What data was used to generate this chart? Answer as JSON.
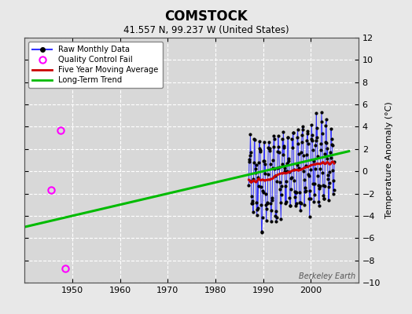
{
  "title": "COMSTOCK",
  "subtitle": "41.557 N, 99.237 W (United States)",
  "ylabel": "Temperature Anomaly (°C)",
  "watermark": "Berkeley Earth",
  "xlim": [
    1940,
    2010
  ],
  "ylim": [
    -10,
    12
  ],
  "yticks": [
    -10,
    -8,
    -6,
    -4,
    -2,
    0,
    2,
    4,
    6,
    8,
    10,
    12
  ],
  "xticks": [
    1950,
    1960,
    1970,
    1980,
    1990,
    2000
  ],
  "bg_color": "#e0e0e0",
  "plot_bg_color": "#d8d8d8",
  "qc_fail_points": [
    [
      1945.5,
      -1.7
    ],
    [
      1947.5,
      3.65
    ],
    [
      1948.5,
      -8.7
    ]
  ],
  "trend_x": [
    1940,
    2008
  ],
  "trend_y": [
    -5.0,
    1.8
  ],
  "colors": {
    "raw_line": "#3333ff",
    "raw_marker": "#000000",
    "qc_fail": "#ff00ff",
    "moving_avg": "#cc0000",
    "trend": "#00bb00",
    "grid": "#ffffff",
    "legend_bg": "#ffffff",
    "fig_bg": "#e8e8e8"
  },
  "raw_seed": 12345,
  "moving_avg_span": 0.4
}
